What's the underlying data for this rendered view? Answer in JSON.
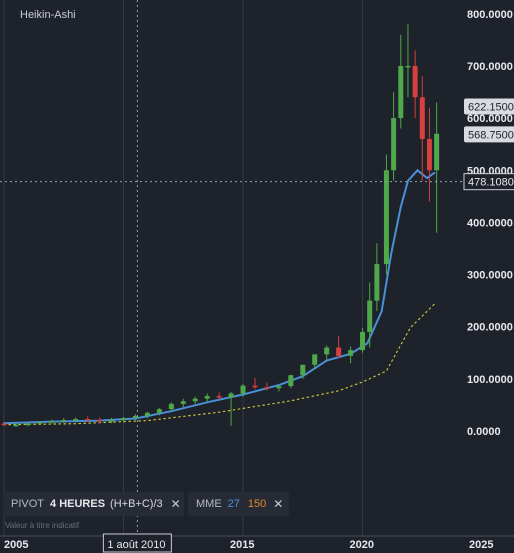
{
  "chart_data": {
    "type": "candlestick",
    "title": "Heikin-Ashi",
    "x_ticks": [
      "2005",
      "2010",
      "2015",
      "2020",
      "2025"
    ],
    "y_ticks": [
      "800.0000",
      "700.0000",
      "600.0000",
      "500.0000",
      "400.0000",
      "300.0000",
      "200.0000",
      "100.0000",
      "0.0000"
    ],
    "y_range": [
      -100,
      800
    ],
    "x_range": [
      2005.0,
      2025.5
    ],
    "crosshair": {
      "x_label": "1 août 2010",
      "y_label": "478.1080",
      "x_value": 2010.58,
      "y_value": 478.108
    },
    "price_labels": [
      {
        "text": "622.1500",
        "value": 622.15
      },
      {
        "text": "568.7500",
        "value": 568.75
      }
    ],
    "series": [
      {
        "name": "Heikin-Ashi",
        "kind": "candles",
        "t": [
          2005.0,
          2005.5,
          2006.0,
          2006.5,
          2007.0,
          2007.5,
          2008.0,
          2008.5,
          2009.0,
          2009.5,
          2010.0,
          2010.5,
          2011.0,
          2011.5,
          2012.0,
          2012.5,
          2013.0,
          2013.5,
          2014.0,
          2014.5,
          2015.0,
          2015.5,
          2016.0,
          2016.5,
          2017.0,
          2017.5,
          2018.0,
          2018.5,
          2019.0,
          2019.5,
          2020.0,
          2020.3,
          2020.6,
          2021.0,
          2021.3,
          2021.6,
          2021.9,
          2022.2,
          2022.5,
          2022.8,
          2023.1
        ],
        "open": [
          14,
          12,
          12,
          14,
          17,
          19,
          21,
          23,
          21,
          19,
          21,
          25,
          29,
          35,
          42,
          52,
          57,
          62,
          67,
          64,
          72,
          87,
          84,
          82,
          86,
          107,
          127,
          147,
          160,
          144,
          155,
          190,
          250,
          320,
          500,
          600,
          700,
          700,
          640,
          560,
          500
        ],
        "high": [
          18,
          16,
          16,
          19,
          22,
          25,
          26,
          28,
          26,
          25,
          27,
          32,
          37,
          44,
          55,
          62,
          66,
          72,
          74,
          75,
          90,
          102,
          93,
          88,
          108,
          127,
          147,
          164,
          182,
          162,
          198,
          285,
          360,
          530,
          650,
          760,
          780,
          730,
          680,
          620,
          630
        ],
        "low": [
          10,
          8,
          9,
          11,
          14,
          16,
          17,
          18,
          15,
          15,
          17,
          21,
          24,
          30,
          37,
          46,
          52,
          55,
          60,
          10,
          66,
          80,
          78,
          76,
          82,
          100,
          118,
          133,
          140,
          130,
          150,
          160,
          230,
          300,
          480,
          580,
          640,
          600,
          480,
          440,
          380
        ],
        "close": [
          12,
          12,
          14,
          17,
          19,
          21,
          23,
          21,
          19,
          21,
          25,
          29,
          35,
          42,
          52,
          57,
          62,
          67,
          64,
          72,
          87,
          84,
          82,
          86,
          107,
          127,
          147,
          160,
          144,
          155,
          190,
          250,
          320,
          500,
          600,
          700,
          700,
          640,
          560,
          500,
          570
        ]
      },
      {
        "name": "MME 27",
        "kind": "line",
        "color": "#4a90d9",
        "t": [
          2005.0,
          2007.0,
          2009.0,
          2010.5,
          2012.0,
          2013.5,
          2015.0,
          2016.5,
          2017.5,
          2018.5,
          2019.5,
          2020.2,
          2020.8,
          2021.2,
          2021.6,
          2021.9,
          2022.3,
          2022.7,
          2023.0
        ],
        "values": [
          15,
          18,
          20,
          24,
          38,
          55,
          70,
          88,
          105,
          135,
          148,
          168,
          230,
          340,
          430,
          480,
          500,
          485,
          495
        ]
      },
      {
        "name": "MME 150",
        "kind": "line",
        "color": "#c8c43a",
        "t": [
          2005.0,
          2008.0,
          2011.0,
          2014.0,
          2017.0,
          2019.0,
          2020.0,
          2021.0,
          2022.0,
          2023.0
        ],
        "values": [
          12,
          14,
          20,
          36,
          58,
          77,
          94,
          115,
          198,
          243
        ]
      }
    ]
  },
  "toolbar": {
    "pivot": {
      "label": "PIVOT",
      "interval": "4 HEURES",
      "formula": "(H+B+C)/3"
    },
    "ma": {
      "label": "MME",
      "period1": "27",
      "period2": "150"
    },
    "close_glyph": "✕"
  },
  "disclaimer": "Valeur à titre indicatif",
  "colors": {
    "background": "#1e222b",
    "up": "#4fa84a",
    "down": "#d6403e",
    "grid": "#3d424c"
  }
}
